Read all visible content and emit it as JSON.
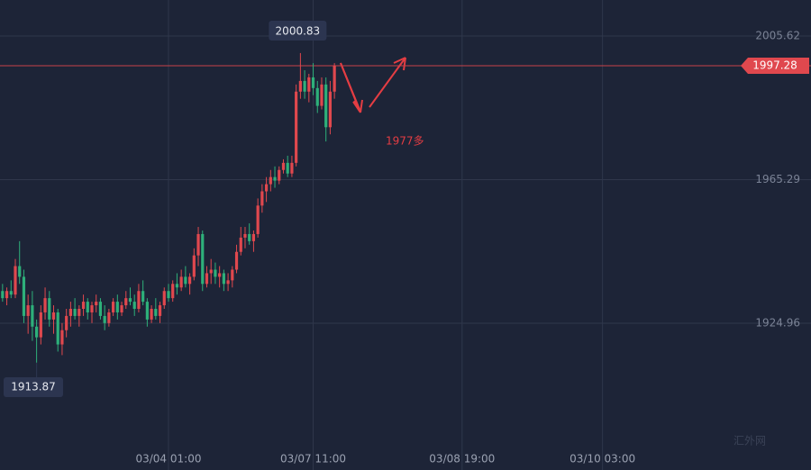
{
  "chart_data": {
    "type": "candlestick",
    "x": [
      0,
      1,
      2,
      3,
      4,
      5,
      6,
      7,
      8,
      9,
      10,
      11,
      12,
      13,
      14,
      15,
      16,
      17,
      18,
      19,
      20,
      21,
      22,
      23,
      24,
      25,
      26,
      27,
      28,
      29,
      30,
      31,
      32,
      33,
      34,
      35,
      36,
      37,
      38,
      39,
      40,
      41,
      42,
      43,
      44,
      45,
      46,
      47,
      48,
      49,
      50,
      51,
      52,
      53,
      54,
      55,
      56,
      57,
      58,
      59,
      60,
      61,
      62,
      63,
      64,
      65,
      66,
      67,
      68,
      69,
      70,
      71,
      72,
      73,
      74,
      75,
      76,
      77,
      78
    ],
    "open": [
      1934,
      1932,
      1934,
      1933,
      1941,
      1938,
      1927,
      1930,
      1924,
      1921,
      1928,
      1932,
      1926,
      1928,
      1919,
      1923,
      1927,
      1929,
      1927,
      1929,
      1931,
      1928,
      1930,
      1931,
      1927,
      1925,
      1928,
      1931,
      1928,
      1930,
      1932,
      1931,
      1929,
      1934,
      1931,
      1926,
      1929,
      1927,
      1930,
      1934,
      1932,
      1936,
      1935,
      1938,
      1936,
      1938,
      1944,
      1950,
      1936,
      1939,
      1940,
      1938,
      1939,
      1936,
      1937,
      1940,
      1945,
      1949,
      1950,
      1948,
      1950,
      1958,
      1962,
      1964,
      1966,
      1965,
      1968,
      1970,
      1967,
      1970,
      1990,
      1993,
      1990,
      1994,
      1991,
      1986,
      1992,
      1980,
      1990
    ],
    "high": [
      1936,
      1935,
      1937,
      1943,
      1948,
      1940,
      1933,
      1934,
      1926,
      1930,
      1935,
      1934,
      1930,
      1929,
      1925,
      1929,
      1931,
      1932,
      1930,
      1933,
      1932,
      1931,
      1933,
      1932,
      1930,
      1929,
      1932,
      1933,
      1931,
      1934,
      1935,
      1933,
      1936,
      1937,
      1932,
      1930,
      1932,
      1931,
      1935,
      1936,
      1937,
      1939,
      1940,
      1941,
      1939,
      1946,
      1952,
      1951,
      1941,
      1943,
      1942,
      1941,
      1940,
      1939,
      1941,
      1947,
      1952,
      1952,
      1953,
      1951,
      1960,
      1964,
      1966,
      1968,
      1969,
      1969,
      1971,
      1972,
      1972,
      1992,
      2000.83,
      1996,
      1995,
      1998,
      1993,
      1994,
      1994,
      1993,
      1998
    ],
    "low": [
      1931,
      1930,
      1932,
      1932,
      1936,
      1925,
      1922,
      1920,
      1913.87,
      1919,
      1926,
      1924,
      1922,
      1917,
      1916,
      1921,
      1924,
      1926,
      1924,
      1927,
      1926,
      1925,
      1928,
      1926,
      1923,
      1924,
      1927,
      1926,
      1927,
      1929,
      1930,
      1927,
      1928,
      1930,
      1924,
      1925,
      1926,
      1925,
      1929,
      1931,
      1931,
      1933,
      1934,
      1935,
      1933,
      1937,
      1941,
      1934,
      1935,
      1936,
      1936,
      1935,
      1934,
      1934,
      1935,
      1939,
      1944,
      1946,
      1947,
      1945,
      1949,
      1956,
      1959,
      1962,
      1963,
      1964,
      1967,
      1966,
      1966,
      1969,
      1988,
      1988,
      1987,
      1989,
      1984,
      1985,
      1976,
      1978,
      1988
    ],
    "close": [
      1932,
      1934,
      1933,
      1941,
      1938,
      1927,
      1930,
      1924,
      1921,
      1928,
      1932,
      1926,
      1928,
      1919,
      1923,
      1927,
      1929,
      1927,
      1929,
      1931,
      1928,
      1930,
      1931,
      1927,
      1925,
      1928,
      1931,
      1928,
      1930,
      1932,
      1931,
      1929,
      1934,
      1931,
      1926,
      1929,
      1927,
      1930,
      1934,
      1932,
      1936,
      1935,
      1938,
      1936,
      1938,
      1944,
      1950,
      1936,
      1939,
      1940,
      1938,
      1939,
      1936,
      1937,
      1940,
      1945,
      1949,
      1950,
      1948,
      1950,
      1958,
      1962,
      1964,
      1966,
      1965,
      1968,
      1970,
      1967,
      1970,
      1990,
      1993,
      1990,
      1994,
      1991,
      1986,
      1992,
      1980,
      1990,
      1997.28
    ],
    "up_color": "#e0484e",
    "down_color": "#2eb07a",
    "xlim": [
      -0.6,
      190
    ],
    "xticks": [
      {
        "value": 39,
        "label": "03/04 01:00"
      },
      {
        "value": 73,
        "label": "03/07 11:00"
      },
      {
        "value": 108,
        "label": "03/08 19:00"
      },
      {
        "value": 141,
        "label": "03/10 03:00"
      }
    ],
    "ylim": [
      1883.74,
      2015.73
    ],
    "yticks": [
      1924.96,
      1965.29,
      2005.62
    ],
    "last_price": 1997.28,
    "high_label": 2000.83,
    "low_label": 1913.87,
    "annotation": "1977多",
    "watermark": "汇外网",
    "grid": true
  }
}
